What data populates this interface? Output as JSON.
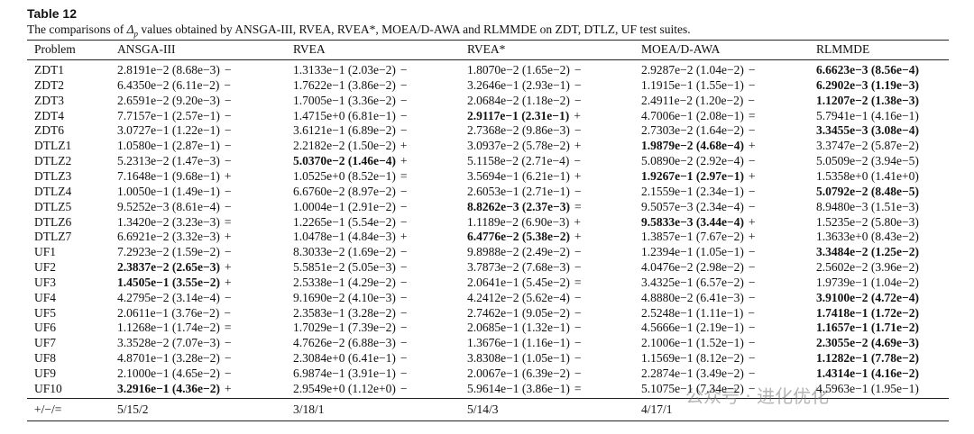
{
  "table": {
    "title": "Table 12",
    "caption": {
      "before": "The comparisons of ",
      "symbol": "Δ",
      "subscript": "p",
      "after": " values obtained by ANSGA-III, RVEA, RVEA*, MOEA/D-AWA and RLMMDE on ZDT, DTLZ, UF test suites."
    },
    "header": [
      "Problem",
      "ANSGA-III",
      "RVEA",
      "RVEA*",
      "MOEA/D-AWA",
      "RLMMDE"
    ],
    "rows": [
      {
        "problem": "ZDT1",
        "cells": [
          {
            "value": "2.8191e−2 (8.68e−3)",
            "sign": "−"
          },
          {
            "value": "1.3133e−1 (2.03e−2)",
            "sign": "−"
          },
          {
            "value": "1.8070e−2 (1.65e−2)",
            "sign": "−"
          },
          {
            "value": "2.9287e−2 (1.04e−2)",
            "sign": "−"
          },
          {
            "value": "6.6623e−3 (8.56e−4)",
            "bold": true
          }
        ]
      },
      {
        "problem": "ZDT2",
        "cells": [
          {
            "value": "6.4350e−2 (6.11e−2)",
            "sign": "−"
          },
          {
            "value": "1.7622e−1 (3.86e−2)",
            "sign": "−"
          },
          {
            "value": "3.2646e−1 (2.93e−1)",
            "sign": "−"
          },
          {
            "value": "1.1915e−1 (1.55e−1)",
            "sign": "−"
          },
          {
            "value": "6.2902e−3 (1.19e−3)",
            "bold": true
          }
        ]
      },
      {
        "problem": "ZDT3",
        "cells": [
          {
            "value": "2.6591e−2 (9.20e−3)",
            "sign": "−"
          },
          {
            "value": "1.7005e−1 (3.36e−2)",
            "sign": "−"
          },
          {
            "value": "2.0684e−2 (1.18e−2)",
            "sign": "−"
          },
          {
            "value": "2.4911e−2 (1.20e−2)",
            "sign": "−"
          },
          {
            "value": "1.1207e−2 (1.38e−3)",
            "bold": true
          }
        ]
      },
      {
        "problem": "ZDT4",
        "cells": [
          {
            "value": "7.7157e−1 (2.57e−1)",
            "sign": "−"
          },
          {
            "value": "1.4715e+0 (6.81e−1)",
            "sign": "−"
          },
          {
            "value": "2.9117e−1 (2.31e−1)",
            "sign": "+",
            "bold": true
          },
          {
            "value": "4.7006e−1 (2.08e−1)",
            "sign": "="
          },
          {
            "value": "5.7941e−1 (4.16e−1)"
          }
        ]
      },
      {
        "problem": "ZDT6",
        "cells": [
          {
            "value": "3.0727e−1 (1.22e−1)",
            "sign": "−"
          },
          {
            "value": "3.6121e−1 (6.89e−2)",
            "sign": "−"
          },
          {
            "value": "2.7368e−2 (9.86e−3)",
            "sign": "−"
          },
          {
            "value": "2.7303e−2 (1.64e−2)",
            "sign": "−"
          },
          {
            "value": "3.3455e−3 (3.08e−4)",
            "bold": true
          }
        ]
      },
      {
        "problem": "DTLZ1",
        "cells": [
          {
            "value": "1.0580e−1 (2.87e−1)",
            "sign": "−"
          },
          {
            "value": "2.2182e−2 (1.50e−2)",
            "sign": "+"
          },
          {
            "value": "3.0937e−2 (5.78e−2)",
            "sign": "+"
          },
          {
            "value": "1.9879e−2 (4.68e−4)",
            "sign": "+",
            "bold": true
          },
          {
            "value": "3.3747e−2 (5.87e−2)"
          }
        ]
      },
      {
        "problem": "DTLZ2",
        "cells": [
          {
            "value": "5.2313e−2 (1.47e−3)",
            "sign": "−"
          },
          {
            "value": "5.0370e−2 (1.46e−4)",
            "sign": "+",
            "bold": true
          },
          {
            "value": "5.1158e−2 (2.71e−4)",
            "sign": "−"
          },
          {
            "value": "5.0890e−2 (2.92e−4)",
            "sign": "−"
          },
          {
            "value": "5.0509e−2 (3.94e−5)"
          }
        ]
      },
      {
        "problem": "DTLZ3",
        "cells": [
          {
            "value": "7.1648e−1 (9.68e−1)",
            "sign": "+"
          },
          {
            "value": "1.0525e+0 (8.52e−1)",
            "sign": "="
          },
          {
            "value": "3.5694e−1 (6.21e−1)",
            "sign": "+"
          },
          {
            "value": "1.9267e−1 (2.97e−1)",
            "sign": "+",
            "bold": true
          },
          {
            "value": "1.5358e+0 (1.41e+0)"
          }
        ]
      },
      {
        "problem": "DTLZ4",
        "cells": [
          {
            "value": "1.0050e−1 (1.49e−1)",
            "sign": "−"
          },
          {
            "value": "6.6760e−2 (8.97e−2)",
            "sign": "−"
          },
          {
            "value": "2.6053e−1 (2.71e−1)",
            "sign": "−"
          },
          {
            "value": "2.1559e−1 (2.34e−1)",
            "sign": "−"
          },
          {
            "value": "5.0792e−2 (8.48e−5)",
            "bold": true
          }
        ]
      },
      {
        "problem": "DTLZ5",
        "cells": [
          {
            "value": "9.5252e−3 (8.61e−4)",
            "sign": "−"
          },
          {
            "value": "1.0004e−1 (2.91e−2)",
            "sign": "−"
          },
          {
            "value": "8.8262e−3 (2.37e−3)",
            "sign": "=",
            "bold": true
          },
          {
            "value": "9.5057e−3 (2.34e−4)",
            "sign": "−"
          },
          {
            "value": "8.9480e−3 (1.51e−3)"
          }
        ]
      },
      {
        "problem": "DTLZ6",
        "cells": [
          {
            "value": "1.3420e−2 (3.23e−3)",
            "sign": "="
          },
          {
            "value": "1.2265e−1 (5.54e−2)",
            "sign": "−"
          },
          {
            "value": "1.1189e−2 (6.90e−3)",
            "sign": "+"
          },
          {
            "value": "9.5833e−3 (3.44e−4)",
            "sign": "+",
            "bold": true
          },
          {
            "value": "1.5235e−2 (5.80e−3)"
          }
        ]
      },
      {
        "problem": "DTLZ7",
        "cells": [
          {
            "value": "6.6921e−2 (3.32e−3)",
            "sign": "+"
          },
          {
            "value": "1.0478e−1 (4.84e−3)",
            "sign": "+"
          },
          {
            "value": "6.4776e−2 (5.38e−2)",
            "sign": "+",
            "bold": true
          },
          {
            "value": "1.3857e−1 (7.67e−2)",
            "sign": "+"
          },
          {
            "value": "1.3633e+0 (8.43e−2)"
          }
        ]
      },
      {
        "problem": "UF1",
        "cells": [
          {
            "value": "7.2923e−2 (1.59e−2)",
            "sign": "−"
          },
          {
            "value": "8.3033e−2 (1.69e−2)",
            "sign": "−"
          },
          {
            "value": "9.8988e−2 (2.49e−2)",
            "sign": "−"
          },
          {
            "value": "1.2394e−1 (1.05e−1)",
            "sign": "−"
          },
          {
            "value": "3.3484e−2 (1.25e−2)",
            "bold": true
          }
        ]
      },
      {
        "problem": "UF2",
        "cells": [
          {
            "value": "2.3837e−2 (2.65e−3)",
            "sign": "+",
            "bold": true
          },
          {
            "value": "5.5851e−2 (5.05e−3)",
            "sign": "−"
          },
          {
            "value": "3.7873e−2 (7.68e−3)",
            "sign": "−"
          },
          {
            "value": "4.0476e−2 (2.98e−2)",
            "sign": "−"
          },
          {
            "value": "2.5602e−2 (3.96e−2)"
          }
        ]
      },
      {
        "problem": "UF3",
        "cells": [
          {
            "value": "1.4505e−1 (3.55e−2)",
            "sign": "+",
            "bold": true
          },
          {
            "value": "2.5338e−1 (4.29e−2)",
            "sign": "−"
          },
          {
            "value": "2.0641e−1 (5.45e−2)",
            "sign": "="
          },
          {
            "value": "3.4325e−1 (6.57e−2)",
            "sign": "−"
          },
          {
            "value": "1.9739e−1 (1.04e−2)"
          }
        ]
      },
      {
        "problem": "UF4",
        "cells": [
          {
            "value": "4.2795e−2 (3.14e−4)",
            "sign": "−"
          },
          {
            "value": "9.1690e−2 (4.10e−3)",
            "sign": "−"
          },
          {
            "value": "4.2412e−2 (5.62e−4)",
            "sign": "−"
          },
          {
            "value": "4.8880e−2 (6.41e−3)",
            "sign": "−"
          },
          {
            "value": "3.9100e−2 (4.72e−4)",
            "bold": true
          }
        ]
      },
      {
        "problem": "UF5",
        "cells": [
          {
            "value": "2.0611e−1 (3.76e−2)",
            "sign": "−"
          },
          {
            "value": "2.3583e−1 (3.28e−2)",
            "sign": "−"
          },
          {
            "value": "2.7462e−1 (9.05e−2)",
            "sign": "−"
          },
          {
            "value": "2.5248e−1 (1.11e−1)",
            "sign": "−"
          },
          {
            "value": "1.7418e−1 (1.72e−2)",
            "bold": true
          }
        ]
      },
      {
        "problem": "UF6",
        "cells": [
          {
            "value": "1.1268e−1 (1.74e−2)",
            "sign": "="
          },
          {
            "value": "1.7029e−1 (7.39e−2)",
            "sign": "−"
          },
          {
            "value": "2.0685e−1 (1.32e−1)",
            "sign": "−"
          },
          {
            "value": "4.5666e−1 (2.19e−1)",
            "sign": "−"
          },
          {
            "value": "1.1657e−1 (1.71e−2)",
            "bold": true
          }
        ]
      },
      {
        "problem": "UF7",
        "cells": [
          {
            "value": "3.3528e−2 (7.07e−3)",
            "sign": "−"
          },
          {
            "value": "4.7626e−2 (6.88e−3)",
            "sign": "−"
          },
          {
            "value": "1.3676e−1 (1.16e−1)",
            "sign": "−"
          },
          {
            "value": "2.1006e−1 (1.52e−1)",
            "sign": "−"
          },
          {
            "value": "2.3055e−2 (4.69e−3)",
            "bold": true
          }
        ]
      },
      {
        "problem": "UF8",
        "cells": [
          {
            "value": "4.8701e−1 (3.28e−2)",
            "sign": "−"
          },
          {
            "value": "2.3084e+0 (6.41e−1)",
            "sign": "−"
          },
          {
            "value": "3.8308e−1 (1.05e−1)",
            "sign": "−"
          },
          {
            "value": "1.1569e−1 (8.12e−2)",
            "sign": "−"
          },
          {
            "value": "1.1282e−1 (7.78e−2)",
            "bold": true
          }
        ]
      },
      {
        "problem": "UF9",
        "cells": [
          {
            "value": "2.1000e−1 (4.65e−2)",
            "sign": "−"
          },
          {
            "value": "6.9874e−1 (3.91e−1)",
            "sign": "−"
          },
          {
            "value": "2.0067e−1 (6.39e−2)",
            "sign": "−"
          },
          {
            "value": "2.2874e−1 (3.49e−2)",
            "sign": "−"
          },
          {
            "value": "1.4314e−1 (4.16e−2)",
            "bold": true
          }
        ]
      },
      {
        "problem": "UF10",
        "cells": [
          {
            "value": "3.2916e−1 (4.36e−2)",
            "sign": "+",
            "bold": true
          },
          {
            "value": "2.9549e+0 (1.12e+0)",
            "sign": "−"
          },
          {
            "value": "5.9614e−1 (3.86e−1)",
            "sign": "="
          },
          {
            "value": "5.1075e−1 (7.34e−2)",
            "sign": "−"
          },
          {
            "value": "4.5963e−1 (1.95e−1)"
          }
        ]
      }
    ],
    "summary": {
      "label": "+/−/=",
      "cells": [
        "5/15/2",
        "3/18/1",
        "5/14/3",
        "4/17/1"
      ]
    },
    "watermark": "公众号 · 进化优化"
  }
}
